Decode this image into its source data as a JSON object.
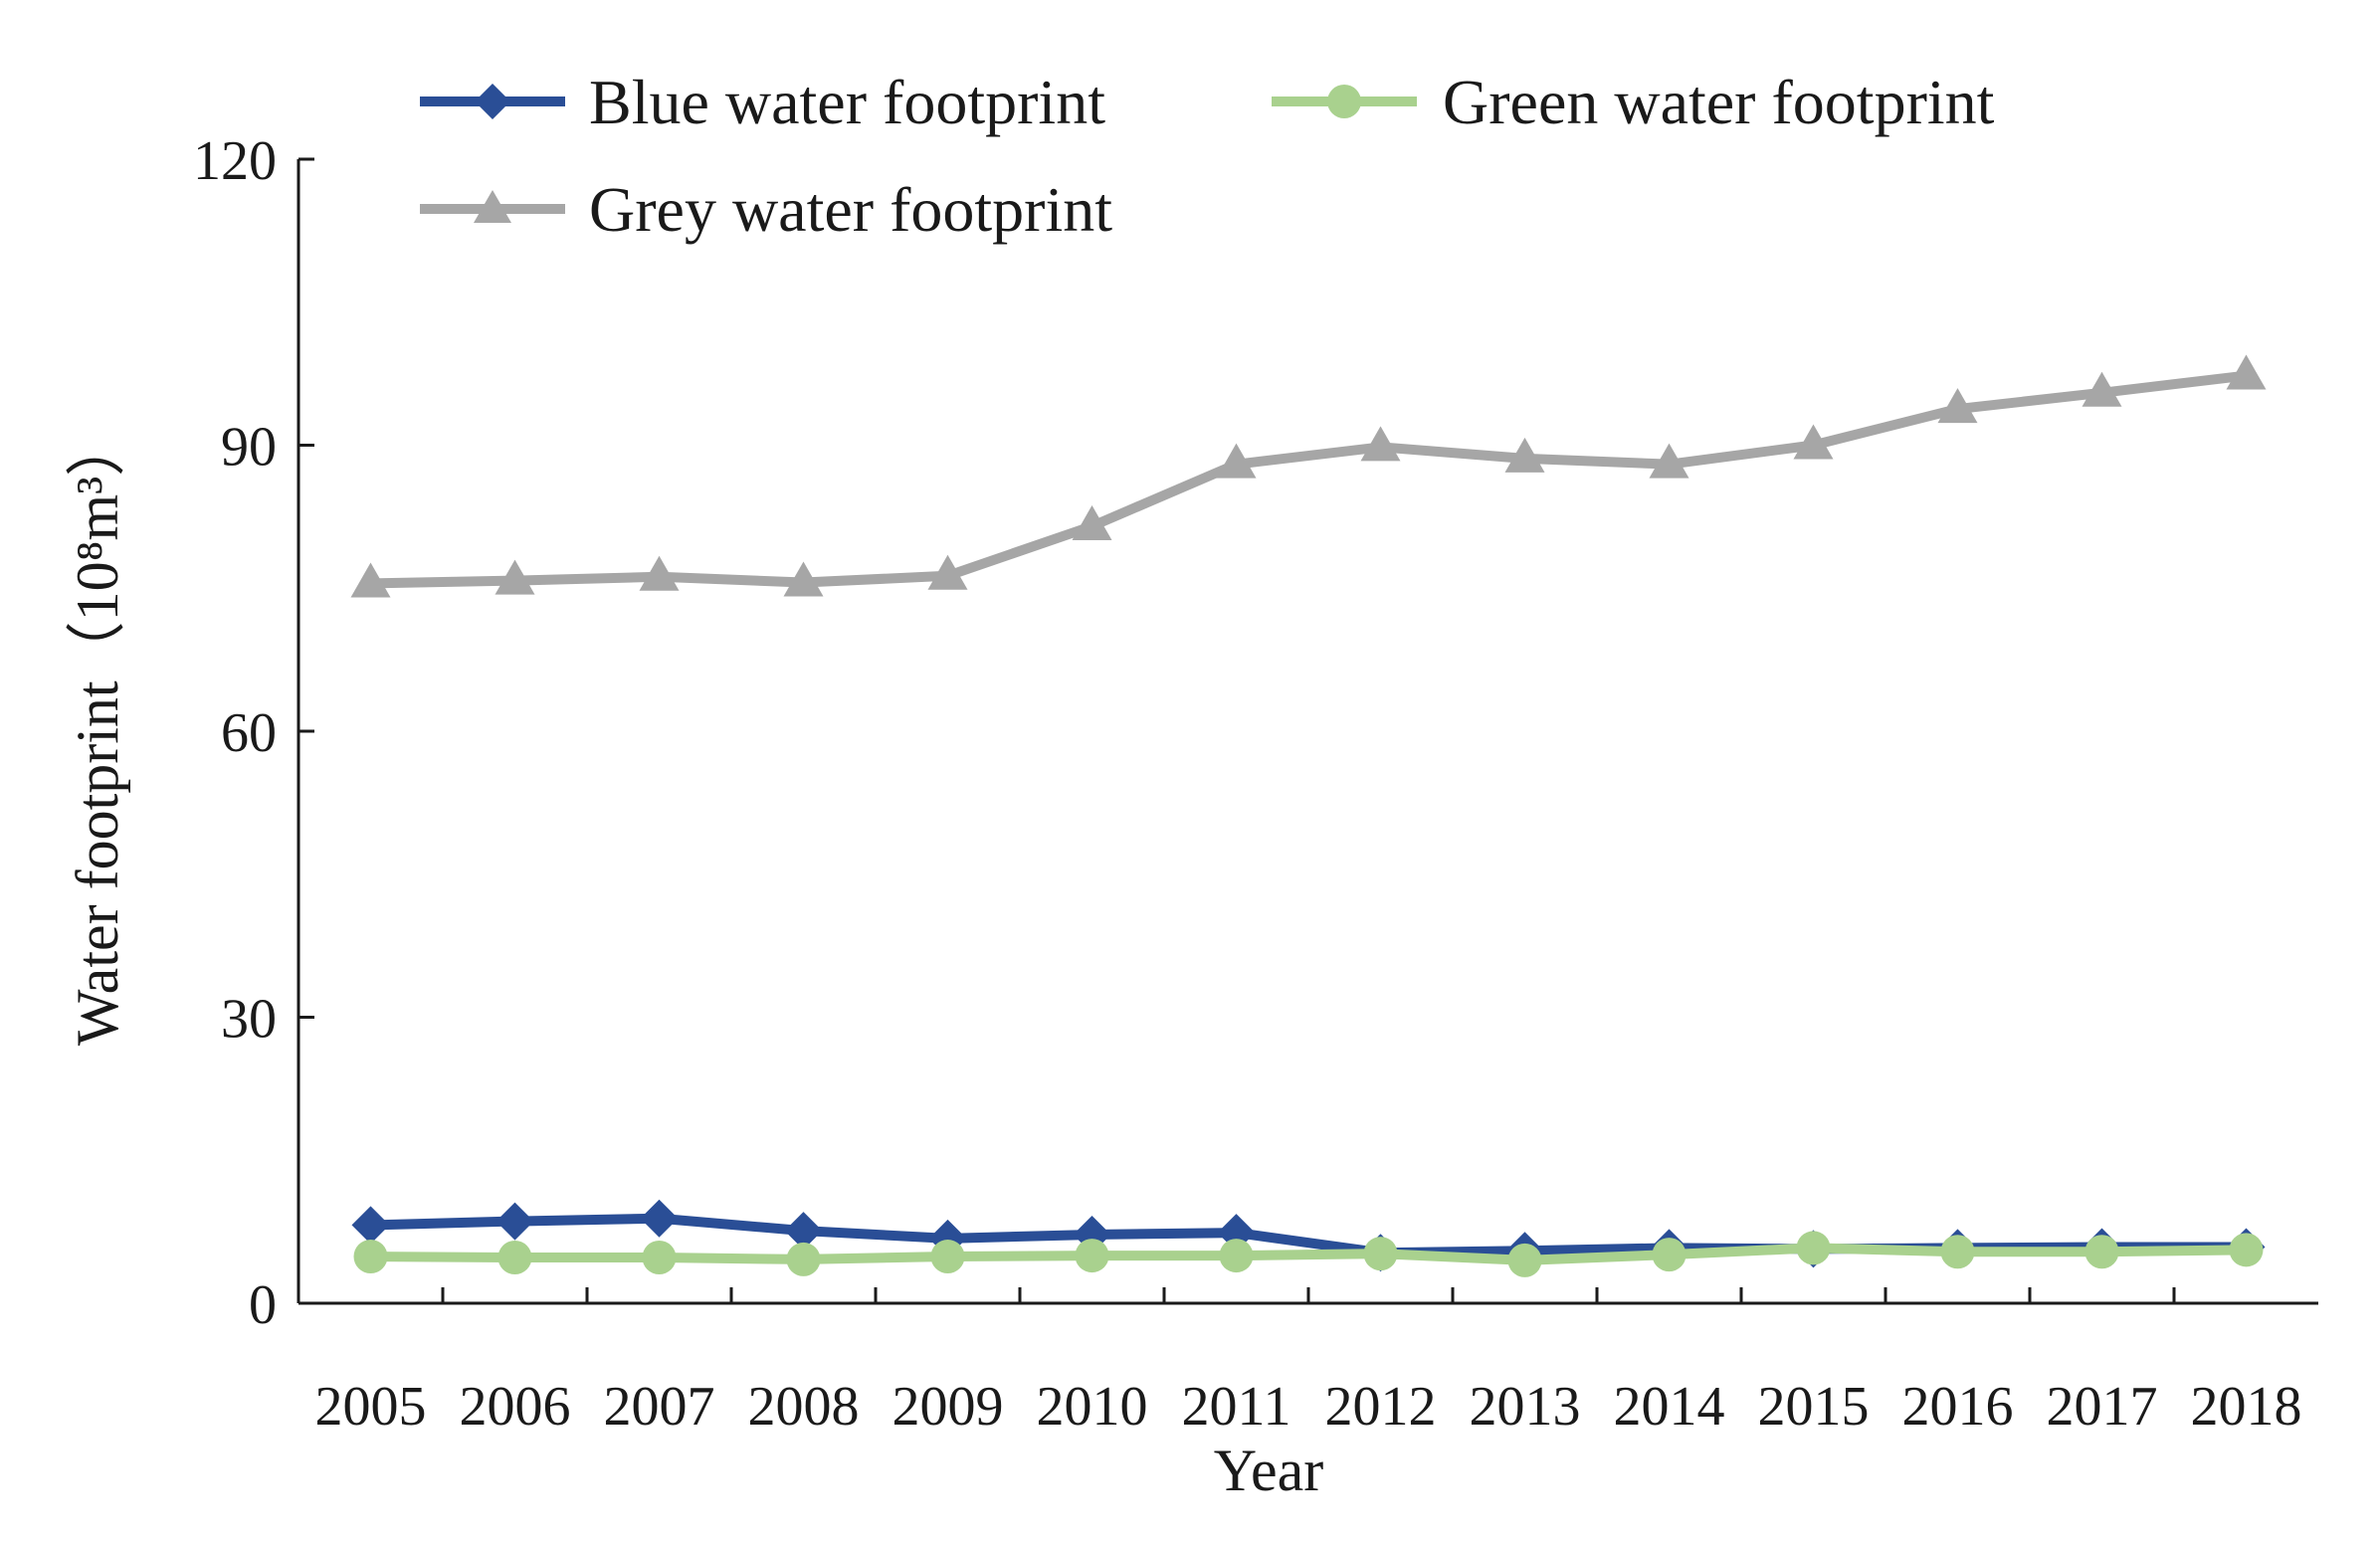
{
  "chart_data": {
    "type": "line",
    "title": "",
    "xlabel": "Year",
    "ylabel": "Water footprint（10⁸m³）",
    "ylim": [
      0,
      120
    ],
    "yticks": [
      0,
      30,
      60,
      90,
      120
    ],
    "ytick_labels": [
      "0",
      "30",
      "60",
      "90",
      "120"
    ],
    "grid": false,
    "legend_position": "top",
    "categories": [
      "2005",
      "2006",
      "2007",
      "2008",
      "2009",
      "2010",
      "2011",
      "2012",
      "2013",
      "2014",
      "2015",
      "2016",
      "2017",
      "2018"
    ],
    "series": [
      {
        "name": "Blue water footprint",
        "color": "#2a4e96",
        "marker": "diamond",
        "values": [
          8.2,
          8.6,
          8.9,
          7.6,
          6.8,
          7.2,
          7.4,
          5.3,
          5.5,
          5.8,
          5.7,
          5.8,
          5.9,
          5.9
        ]
      },
      {
        "name": "Green water footprint",
        "color": "#a9d18e",
        "marker": "circle",
        "values": [
          4.9,
          4.8,
          4.8,
          4.6,
          4.9,
          5.0,
          5.0,
          5.2,
          4.5,
          5.1,
          5.8,
          5.4,
          5.4,
          5.6
        ]
      },
      {
        "name": "Grey water footprint",
        "color": "#a6a6a6",
        "marker": "triangle",
        "values": [
          75.5,
          75.8,
          76.2,
          75.6,
          76.3,
          81.5,
          88.0,
          89.8,
          88.6,
          88.0,
          90.0,
          93.8,
          95.5,
          97.3
        ]
      }
    ]
  }
}
